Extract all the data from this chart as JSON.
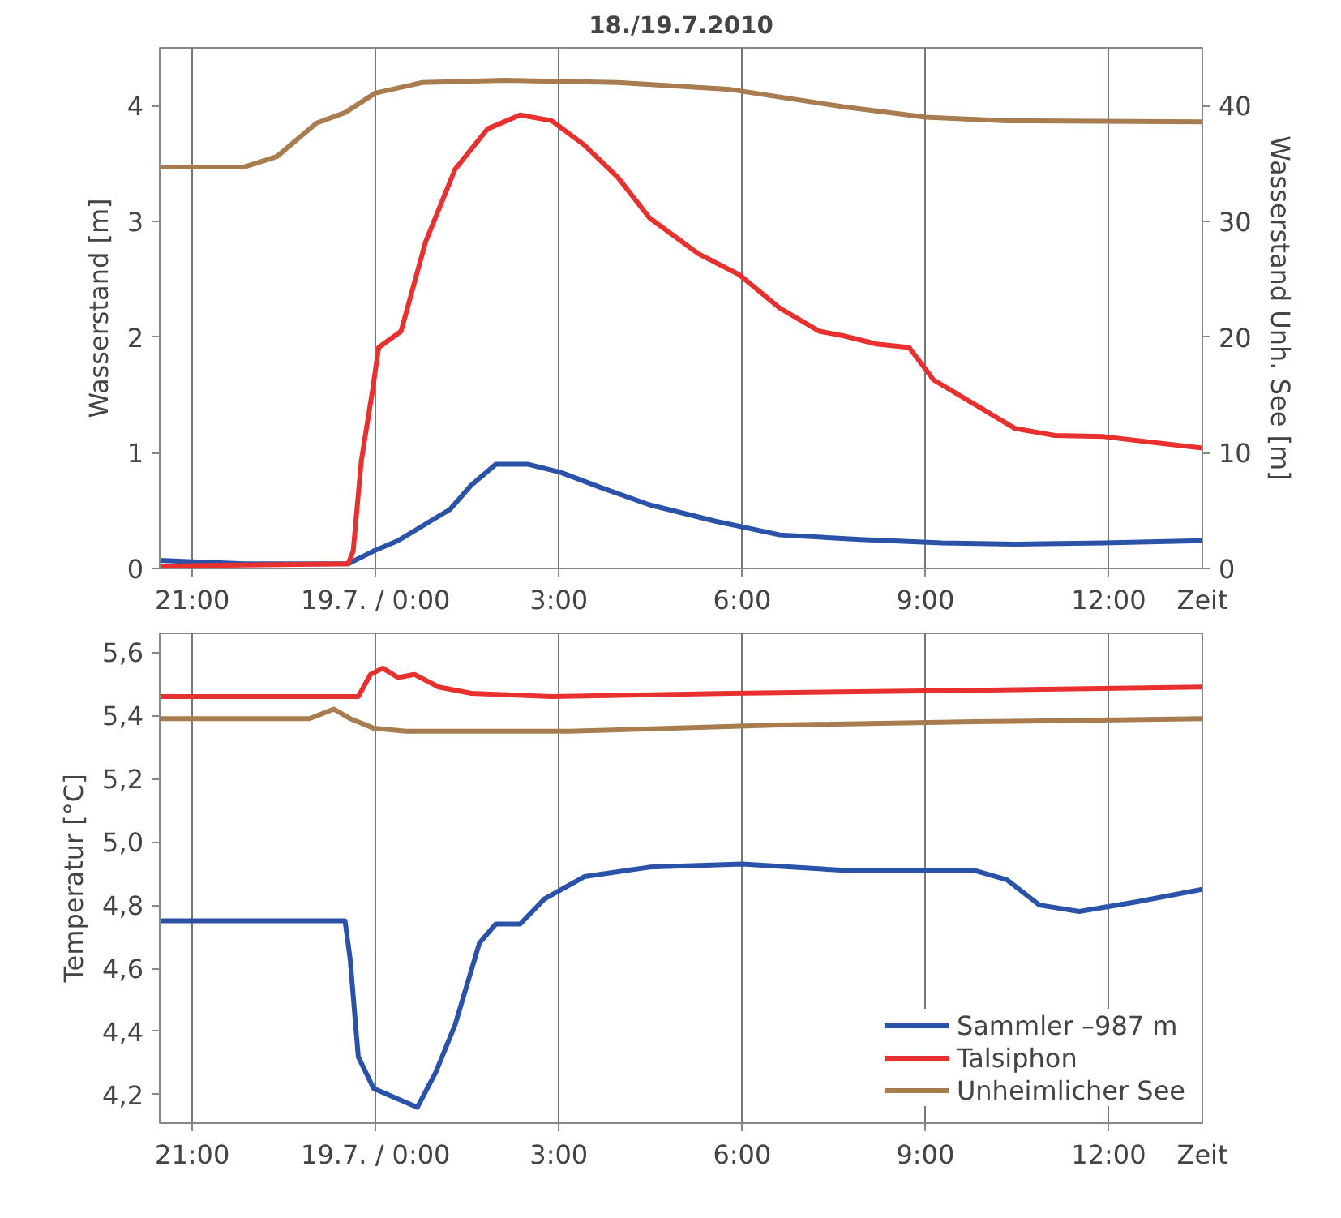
{
  "chart_data": [
    {
      "type": "line",
      "title": "18./19.7.2010",
      "xlabel": "Zeit",
      "ylabel": "Wasserstand [m]",
      "y2label": "Wasserstand Unh. See [m]",
      "xlim": [
        "2010-07-18T20:28",
        "2010-07-19T13:32"
      ],
      "xticks": [
        {
          "value": "2010-07-18T21:00",
          "label": "21:00"
        },
        {
          "value": "2010-07-19T00:00",
          "label": "19.7. / 0:00"
        },
        {
          "value": "2010-07-19T03:00",
          "label": "3:00"
        },
        {
          "value": "2010-07-19T06:00",
          "label": "6:00"
        },
        {
          "value": "2010-07-19T09:00",
          "label": "9:00"
        },
        {
          "value": "2010-07-19T12:00",
          "label": "12:00"
        }
      ],
      "ylim": [
        0,
        4.5
      ],
      "yticks": [
        0,
        1,
        2,
        3,
        4
      ],
      "y2lim": [
        0,
        45
      ],
      "y2ticks": [
        0,
        10,
        20,
        30,
        40
      ],
      "grid": "x",
      "line_style": "solid",
      "series": [
        {
          "color": "#2a52a8",
          "x": [
            "2010-07-18T20:28",
            "2010-07-18T21:51",
            "2010-07-18T23:33",
            "2010-07-18T23:58",
            "2010-07-19T00:22",
            "2010-07-19T00:54",
            "2010-07-19T01:13",
            "2010-07-19T01:34",
            "2010-07-19T01:58",
            "2010-07-19T02:30",
            "2010-07-19T03:02",
            "2010-07-19T03:41",
            "2010-07-19T04:29",
            "2010-07-19T05:33",
            "2010-07-19T06:37",
            "2010-07-19T07:56",
            "2010-07-19T09:16",
            "2010-07-19T10:28",
            "2010-07-19T11:55",
            "2010-07-19T13:32"
          ],
          "values": [
            0.07,
            0.04,
            0.04,
            0.15,
            0.24,
            0.41,
            0.51,
            0.72,
            0.9,
            0.9,
            0.83,
            0.7,
            0.55,
            0.41,
            0.29,
            0.25,
            0.22,
            0.21,
            0.22,
            0.24
          ]
        },
        {
          "color": "#e8302f",
          "x": [
            "2010-07-18T20:28",
            "2010-07-18T21:51",
            "2010-07-18T23:33",
            "2010-07-18T23:38",
            "2010-07-18T23:46",
            "2010-07-18T23:57",
            "2010-07-19T00:03",
            "2010-07-19T00:25",
            "2010-07-19T00:49",
            "2010-07-19T01:18",
            "2010-07-19T01:50",
            "2010-07-19T02:22",
            "2010-07-19T02:53",
            "2010-07-19T03:25",
            "2010-07-19T03:58",
            "2010-07-19T04:29",
            "2010-07-19T05:17",
            "2010-07-19T05:57",
            "2010-07-19T06:37",
            "2010-07-19T07:16",
            "2010-07-19T07:40",
            "2010-07-19T08:12",
            "2010-07-19T08:44",
            "2010-07-19T09:08",
            "2010-07-19T09:48",
            "2010-07-19T10:28",
            "2010-07-19T11:07",
            "2010-07-19T11:55",
            "2010-07-19T12:43",
            "2010-07-19T13:32"
          ],
          "values": [
            0.02,
            0.03,
            0.04,
            0.15,
            0.93,
            1.54,
            1.91,
            2.05,
            2.82,
            3.45,
            3.8,
            3.92,
            3.87,
            3.66,
            3.38,
            3.03,
            2.72,
            2.54,
            2.25,
            2.05,
            2.01,
            1.94,
            1.91,
            1.63,
            1.42,
            1.21,
            1.15,
            1.14,
            1.09,
            1.04
          ]
        },
        {
          "color": "#a87c4f",
          "axis": "y2",
          "x": [
            "2010-07-18T20:28",
            "2010-07-18T21:51",
            "2010-07-18T22:23",
            "2010-07-18T23:02",
            "2010-07-18T23:30",
            "2010-07-19T00:00",
            "2010-07-19T00:46",
            "2010-07-19T02:06",
            "2010-07-19T03:58",
            "2010-07-19T05:49",
            "2010-07-19T07:40",
            "2010-07-19T09:00",
            "2010-07-19T10:20",
            "2010-07-19T13:32"
          ],
          "values": [
            34.7,
            34.7,
            35.6,
            38.5,
            39.4,
            41.1,
            42.0,
            42.2,
            42.0,
            41.4,
            39.9,
            39.0,
            38.7,
            38.6
          ]
        }
      ]
    },
    {
      "type": "line",
      "xlabel": "Zeit",
      "ylabel": "Temperatur [°C]",
      "xlim": [
        "2010-07-18T20:28",
        "2010-07-19T13:32"
      ],
      "xticks": [
        {
          "value": "2010-07-18T21:00",
          "label": "21:00"
        },
        {
          "value": "2010-07-19T00:00",
          "label": "19.7. / 0:00"
        },
        {
          "value": "2010-07-19T03:00",
          "label": "3:00"
        },
        {
          "value": "2010-07-19T06:00",
          "label": "6:00"
        },
        {
          "value": "2010-07-19T09:00",
          "label": "9:00"
        },
        {
          "value": "2010-07-19T12:00",
          "label": "12:00"
        }
      ],
      "ylim": [
        4.11,
        5.66
      ],
      "yticks": [
        {
          "value": 4.2,
          "label": "4,2"
        },
        {
          "value": 4.4,
          "label": "4,4"
        },
        {
          "value": 4.6,
          "label": "4,6"
        },
        {
          "value": 4.8,
          "label": "4,8"
        },
        {
          "value": 5.0,
          "label": "5,0"
        },
        {
          "value": 5.2,
          "label": "5,2"
        },
        {
          "value": 5.4,
          "label": "5,4"
        },
        {
          "value": 5.6,
          "label": "5,6"
        }
      ],
      "grid": "x",
      "legend": "bottom right",
      "line_style": "solid",
      "series": [
        {
          "name": "Sammler –987 m",
          "color": "#2a52a8",
          "x": [
            "2010-07-18T20:28",
            "2010-07-18T21:51",
            "2010-07-18T23:30",
            "2010-07-18T23:35",
            "2010-07-18T23:43",
            "2010-07-18T23:58",
            "2010-07-19T00:41",
            "2010-07-19T00:59",
            "2010-07-19T01:18",
            "2010-07-19T01:42",
            "2010-07-19T01:58",
            "2010-07-19T02:22",
            "2010-07-19T02:46",
            "2010-07-19T03:25",
            "2010-07-19T04:29",
            "2010-07-19T06:00",
            "2010-07-19T07:40",
            "2010-07-19T09:48",
            "2010-07-19T10:20",
            "2010-07-19T10:52",
            "2010-07-19T11:31",
            "2010-07-19T12:27",
            "2010-07-19T13:32"
          ],
          "values": [
            4.75,
            4.75,
            4.75,
            4.63,
            4.32,
            4.22,
            4.16,
            4.27,
            4.42,
            4.68,
            4.74,
            4.74,
            4.82,
            4.89,
            4.92,
            4.93,
            4.91,
            4.91,
            4.88,
            4.8,
            4.78,
            4.81,
            4.85
          ]
        },
        {
          "name": "Talsiphon",
          "color": "#e8302f",
          "x": [
            "2010-07-18T20:28",
            "2010-07-18T23:43",
            "2010-07-18T23:55",
            "2010-07-19T00:07",
            "2010-07-19T00:22",
            "2010-07-19T00:38",
            "2010-07-19T01:02",
            "2010-07-19T01:34",
            "2010-07-19T02:53",
            "2010-07-19T05:49",
            "2010-07-19T09:48",
            "2010-07-19T13:32"
          ],
          "values": [
            5.46,
            5.46,
            5.53,
            5.55,
            5.52,
            5.53,
            5.49,
            5.47,
            5.46,
            5.47,
            5.48,
            5.49
          ]
        },
        {
          "name": "Unheimlicher See",
          "color": "#a87c4f",
          "x": [
            "2010-07-18T20:28",
            "2010-07-18T22:55",
            "2010-07-18T23:19",
            "2010-07-18T23:35",
            "2010-07-18T23:58",
            "2010-07-19T00:30",
            "2010-07-19T03:10",
            "2010-07-19T06:37",
            "2010-07-19T09:48",
            "2010-07-19T13:32"
          ],
          "values": [
            5.39,
            5.39,
            5.42,
            5.39,
            5.36,
            5.35,
            5.35,
            5.37,
            5.38,
            5.39
          ]
        }
      ]
    }
  ]
}
